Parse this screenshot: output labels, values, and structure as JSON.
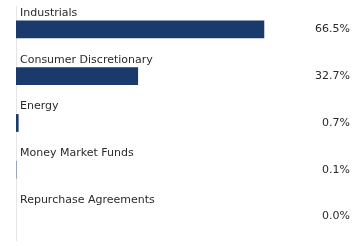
{
  "chart_data": {
    "type": "bar",
    "orientation": "horizontal",
    "categories": [
      "Repurchase Agreements",
      "Money Market Funds",
      "Energy",
      "Consumer Discretionary",
      "Industrials"
    ],
    "values": [
      0.0,
      0.1,
      0.7,
      32.7,
      66.5
    ],
    "value_labels": [
      "0.0%",
      "0.1%",
      "0.7%",
      "32.7%",
      "66.5%"
    ],
    "data_labels": true,
    "color": "#1a3a6b",
    "xlim": [
      0,
      90
    ],
    "tick_labels": false,
    "grid": false
  }
}
